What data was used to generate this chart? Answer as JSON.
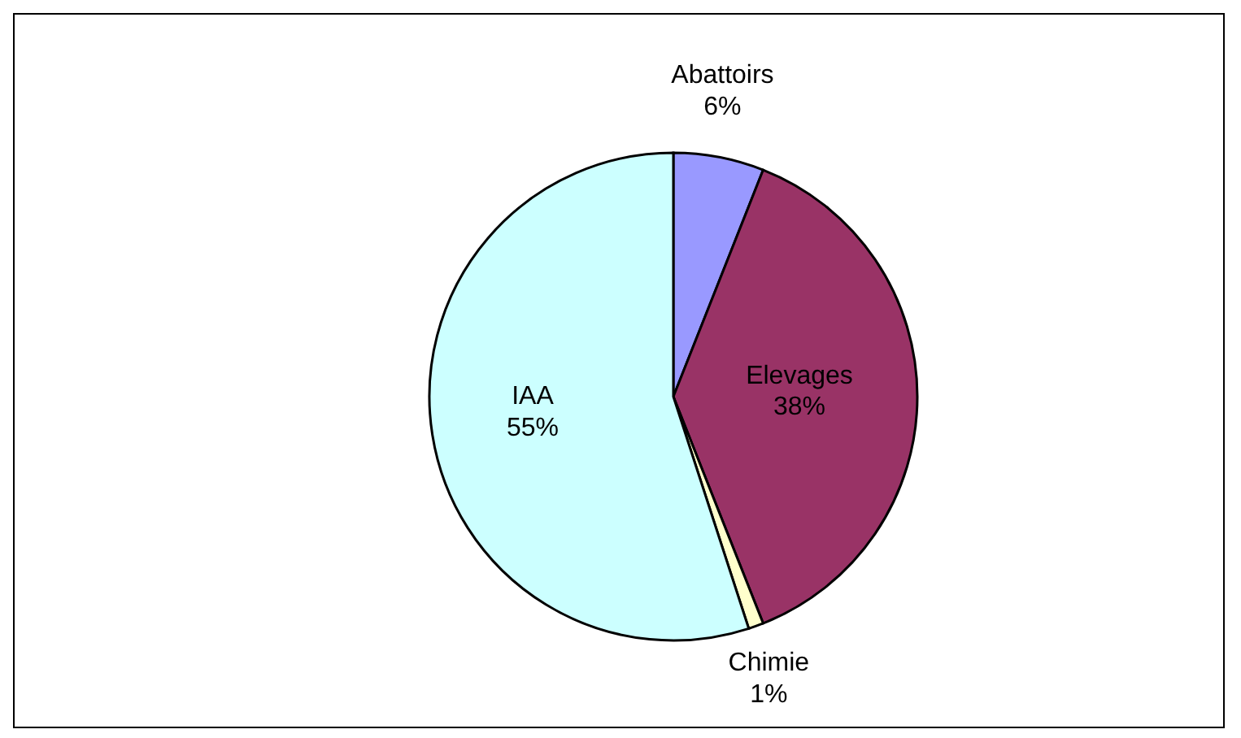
{
  "chart_data": {
    "type": "pie",
    "categories": [
      "Abattoirs",
      "Elevages",
      "Chimie",
      "IAA"
    ],
    "values": [
      6,
      38,
      1,
      55
    ],
    "colors": [
      "#9999ff",
      "#993366",
      "#ffffcc",
      "#ccffff"
    ],
    "value_labels": [
      "6%",
      "38%",
      "1%",
      "55%"
    ]
  }
}
